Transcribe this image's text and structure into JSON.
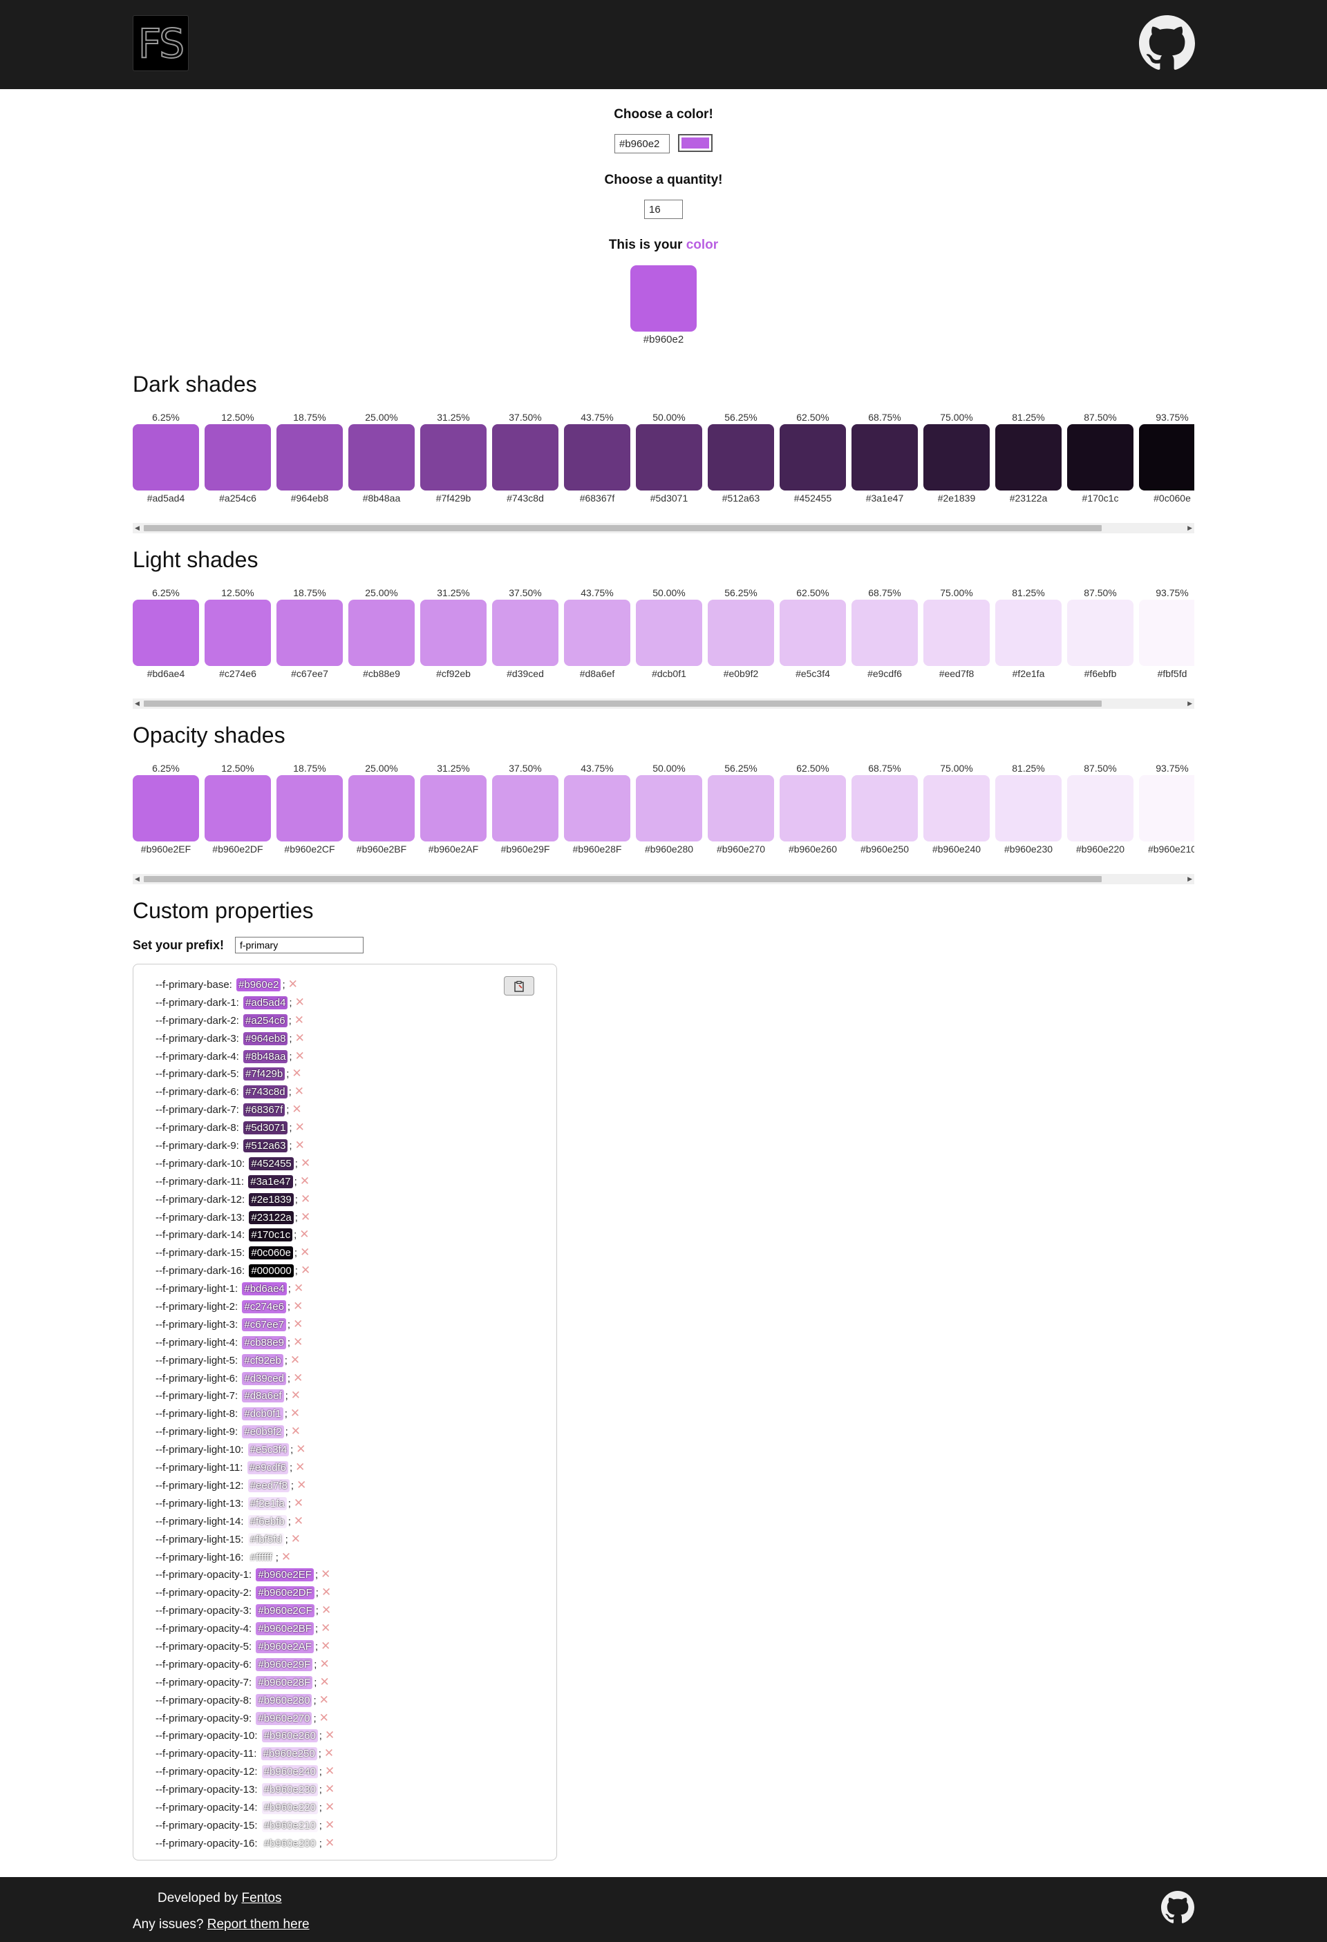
{
  "header": {
    "logo": "FS"
  },
  "color_picker": {
    "label": "Choose a color!",
    "value": "#b960e2",
    "swatch": "#b960e2"
  },
  "quantity": {
    "label": "Choose a quantity!",
    "value": "16"
  },
  "your_color": {
    "label": "This is your ",
    "label_highlight": "color",
    "hex": "#b960e2",
    "swatch": "#b960e2"
  },
  "dark": {
    "title": "Dark shades",
    "items": [
      {
        "pct": "6.25%",
        "hex": "#ad5ad4"
      },
      {
        "pct": "12.50%",
        "hex": "#a254c6"
      },
      {
        "pct": "18.75%",
        "hex": "#964eb8"
      },
      {
        "pct": "25.00%",
        "hex": "#8b48aa"
      },
      {
        "pct": "31.25%",
        "hex": "#7f429b"
      },
      {
        "pct": "37.50%",
        "hex": "#743c8d"
      },
      {
        "pct": "43.75%",
        "hex": "#68367f"
      },
      {
        "pct": "50.00%",
        "hex": "#5d3071"
      },
      {
        "pct": "56.25%",
        "hex": "#512a63"
      },
      {
        "pct": "62.50%",
        "hex": "#452455"
      },
      {
        "pct": "68.75%",
        "hex": "#3a1e47"
      },
      {
        "pct": "75.00%",
        "hex": "#2e1839"
      },
      {
        "pct": "81.25%",
        "hex": "#23122a"
      },
      {
        "pct": "87.50%",
        "hex": "#170c1c"
      },
      {
        "pct": "93.75%",
        "hex": "#0c060e"
      }
    ]
  },
  "light": {
    "title": "Light shades",
    "items": [
      {
        "pct": "6.25%",
        "hex": "#bd6ae4"
      },
      {
        "pct": "12.50%",
        "hex": "#c274e6"
      },
      {
        "pct": "18.75%",
        "hex": "#c67ee7"
      },
      {
        "pct": "25.00%",
        "hex": "#cb88e9"
      },
      {
        "pct": "31.25%",
        "hex": "#cf92eb"
      },
      {
        "pct": "37.50%",
        "hex": "#d39ced"
      },
      {
        "pct": "43.75%",
        "hex": "#d8a6ef"
      },
      {
        "pct": "50.00%",
        "hex": "#dcb0f1"
      },
      {
        "pct": "56.25%",
        "hex": "#e0b9f2"
      },
      {
        "pct": "62.50%",
        "hex": "#e5c3f4"
      },
      {
        "pct": "68.75%",
        "hex": "#e9cdf6"
      },
      {
        "pct": "75.00%",
        "hex": "#eed7f8"
      },
      {
        "pct": "81.25%",
        "hex": "#f2e1fa"
      },
      {
        "pct": "87.50%",
        "hex": "#f6ebfb"
      },
      {
        "pct": "93.75%",
        "hex": "#fbf5fd"
      }
    ]
  },
  "opacity": {
    "title": "Opacity shades",
    "items": [
      {
        "pct": "6.25%",
        "hex": "#b960e2EF",
        "color": "#bd6ae4"
      },
      {
        "pct": "12.50%",
        "hex": "#b960e2DF",
        "color": "#c274e6"
      },
      {
        "pct": "18.75%",
        "hex": "#b960e2CF",
        "color": "#c67ee7"
      },
      {
        "pct": "25.00%",
        "hex": "#b960e2BF",
        "color": "#cb88e9"
      },
      {
        "pct": "31.25%",
        "hex": "#b960e2AF",
        "color": "#cf92eb"
      },
      {
        "pct": "37.50%",
        "hex": "#b960e29F",
        "color": "#d39ced"
      },
      {
        "pct": "43.75%",
        "hex": "#b960e28F",
        "color": "#d8a6ef"
      },
      {
        "pct": "50.00%",
        "hex": "#b960e280",
        "color": "#dcb0f1"
      },
      {
        "pct": "56.25%",
        "hex": "#b960e270",
        "color": "#e0b9f2"
      },
      {
        "pct": "62.50%",
        "hex": "#b960e260",
        "color": "#e5c3f4"
      },
      {
        "pct": "68.75%",
        "hex": "#b960e250",
        "color": "#e9cdf6"
      },
      {
        "pct": "75.00%",
        "hex": "#b960e240",
        "color": "#eed7f8"
      },
      {
        "pct": "81.25%",
        "hex": "#b960e230",
        "color": "#f2e1fa"
      },
      {
        "pct": "87.50%",
        "hex": "#b960e220",
        "color": "#f6ebfb"
      },
      {
        "pct": "93.75%",
        "hex": "#b960e210",
        "color": "#fbf5fd"
      }
    ]
  },
  "custom": {
    "title": "Custom properties",
    "prefix_label": "Set your prefix!",
    "prefix_value": "f-primary",
    "remove_glyph": "✕",
    "lines": [
      {
        "name": "--f-primary-base:",
        "value": "#b960e2",
        "color": "#b960e2"
      },
      {
        "name": "--f-primary-dark-1:",
        "value": "#ad5ad4",
        "color": "#ad5ad4"
      },
      {
        "name": "--f-primary-dark-2:",
        "value": "#a254c6",
        "color": "#a254c6"
      },
      {
        "name": "--f-primary-dark-3:",
        "value": "#964eb8",
        "color": "#964eb8"
      },
      {
        "name": "--f-primary-dark-4:",
        "value": "#8b48aa",
        "color": "#8b48aa"
      },
      {
        "name": "--f-primary-dark-5:",
        "value": "#7f429b",
        "color": "#7f429b"
      },
      {
        "name": "--f-primary-dark-6:",
        "value": "#743c8d",
        "color": "#743c8d"
      },
      {
        "name": "--f-primary-dark-7:",
        "value": "#68367f",
        "color": "#68367f"
      },
      {
        "name": "--f-primary-dark-8:",
        "value": "#5d3071",
        "color": "#5d3071"
      },
      {
        "name": "--f-primary-dark-9:",
        "value": "#512a63",
        "color": "#512a63"
      },
      {
        "name": "--f-primary-dark-10:",
        "value": "#452455",
        "color": "#452455"
      },
      {
        "name": "--f-primary-dark-11:",
        "value": "#3a1e47",
        "color": "#3a1e47"
      },
      {
        "name": "--f-primary-dark-12:",
        "value": "#2e1839",
        "color": "#2e1839"
      },
      {
        "name": "--f-primary-dark-13:",
        "value": "#23122a",
        "color": "#23122a"
      },
      {
        "name": "--f-primary-dark-14:",
        "value": "#170c1c",
        "color": "#170c1c"
      },
      {
        "name": "--f-primary-dark-15:",
        "value": "#0c060e",
        "color": "#0c060e"
      },
      {
        "name": "--f-primary-dark-16:",
        "value": "#000000",
        "color": "#000000"
      },
      {
        "name": "--f-primary-light-1:",
        "value": "#bd6ae4",
        "color": "#bd6ae4"
      },
      {
        "name": "--f-primary-light-2:",
        "value": "#c274e6",
        "color": "#c274e6"
      },
      {
        "name": "--f-primary-light-3:",
        "value": "#c67ee7",
        "color": "#c67ee7"
      },
      {
        "name": "--f-primary-light-4:",
        "value": "#cb88e9",
        "color": "#cb88e9"
      },
      {
        "name": "--f-primary-light-5:",
        "value": "#cf92eb",
        "color": "#cf92eb"
      },
      {
        "name": "--f-primary-light-6:",
        "value": "#d39ced",
        "color": "#d39ced"
      },
      {
        "name": "--f-primary-light-7:",
        "value": "#d8a6ef",
        "color": "#d8a6ef"
      },
      {
        "name": "--f-primary-light-8:",
        "value": "#dcb0f1",
        "color": "#dcb0f1"
      },
      {
        "name": "--f-primary-light-9:",
        "value": "#e0b9f2",
        "color": "#e0b9f2"
      },
      {
        "name": "--f-primary-light-10:",
        "value": "#e5c3f4",
        "color": "#e5c3f4"
      },
      {
        "name": "--f-primary-light-11:",
        "value": "#e9cdf6",
        "color": "#e9cdf6"
      },
      {
        "name": "--f-primary-light-12:",
        "value": "#eed7f8",
        "color": "#eed7f8"
      },
      {
        "name": "--f-primary-light-13:",
        "value": "#f2e1fa",
        "color": "#f2e1fa"
      },
      {
        "name": "--f-primary-light-14:",
        "value": "#f6ebfb",
        "color": "#f6ebfb"
      },
      {
        "name": "--f-primary-light-15:",
        "value": "#fbf5fd",
        "color": "#fbf5fd"
      },
      {
        "name": "--f-primary-light-16:",
        "value": "#ffffff",
        "color": "#ffffff"
      },
      {
        "name": "--f-primary-opacity-1:",
        "value": "#b960e2EF",
        "color": "#bd6ae4"
      },
      {
        "name": "--f-primary-opacity-2:",
        "value": "#b960e2DF",
        "color": "#c274e6"
      },
      {
        "name": "--f-primary-opacity-3:",
        "value": "#b960e2CF",
        "color": "#c67ee7"
      },
      {
        "name": "--f-primary-opacity-4:",
        "value": "#b960e2BF",
        "color": "#cb88e9"
      },
      {
        "name": "--f-primary-opacity-5:",
        "value": "#b960e2AF",
        "color": "#cf92eb"
      },
      {
        "name": "--f-primary-opacity-6:",
        "value": "#b960e29F",
        "color": "#d39ced"
      },
      {
        "name": "--f-primary-opacity-7:",
        "value": "#b960e28F",
        "color": "#d8a6ef"
      },
      {
        "name": "--f-primary-opacity-8:",
        "value": "#b960e280",
        "color": "#dcb0f1"
      },
      {
        "name": "--f-primary-opacity-9:",
        "value": "#b960e270",
        "color": "#e0b9f2"
      },
      {
        "name": "--f-primary-opacity-10:",
        "value": "#b960e260",
        "color": "#e5c3f4"
      },
      {
        "name": "--f-primary-opacity-11:",
        "value": "#b960e250",
        "color": "#e9cdf6"
      },
      {
        "name": "--f-primary-opacity-12:",
        "value": "#b960e240",
        "color": "#eed7f8"
      },
      {
        "name": "--f-primary-opacity-13:",
        "value": "#b960e230",
        "color": "#f2e1fa"
      },
      {
        "name": "--f-primary-opacity-14:",
        "value": "#b960e220",
        "color": "#f6ebfb"
      },
      {
        "name": "--f-primary-opacity-15:",
        "value": "#b960e210",
        "color": "#fbf5fd"
      },
      {
        "name": "--f-primary-opacity-16:",
        "value": "#b960e200",
        "color": "#ffffff"
      }
    ]
  },
  "footer": {
    "developed_by": "Developed by ",
    "developer_link": "Fentos",
    "issues_text": "Any issues? ",
    "issues_link": "Report them here"
  }
}
